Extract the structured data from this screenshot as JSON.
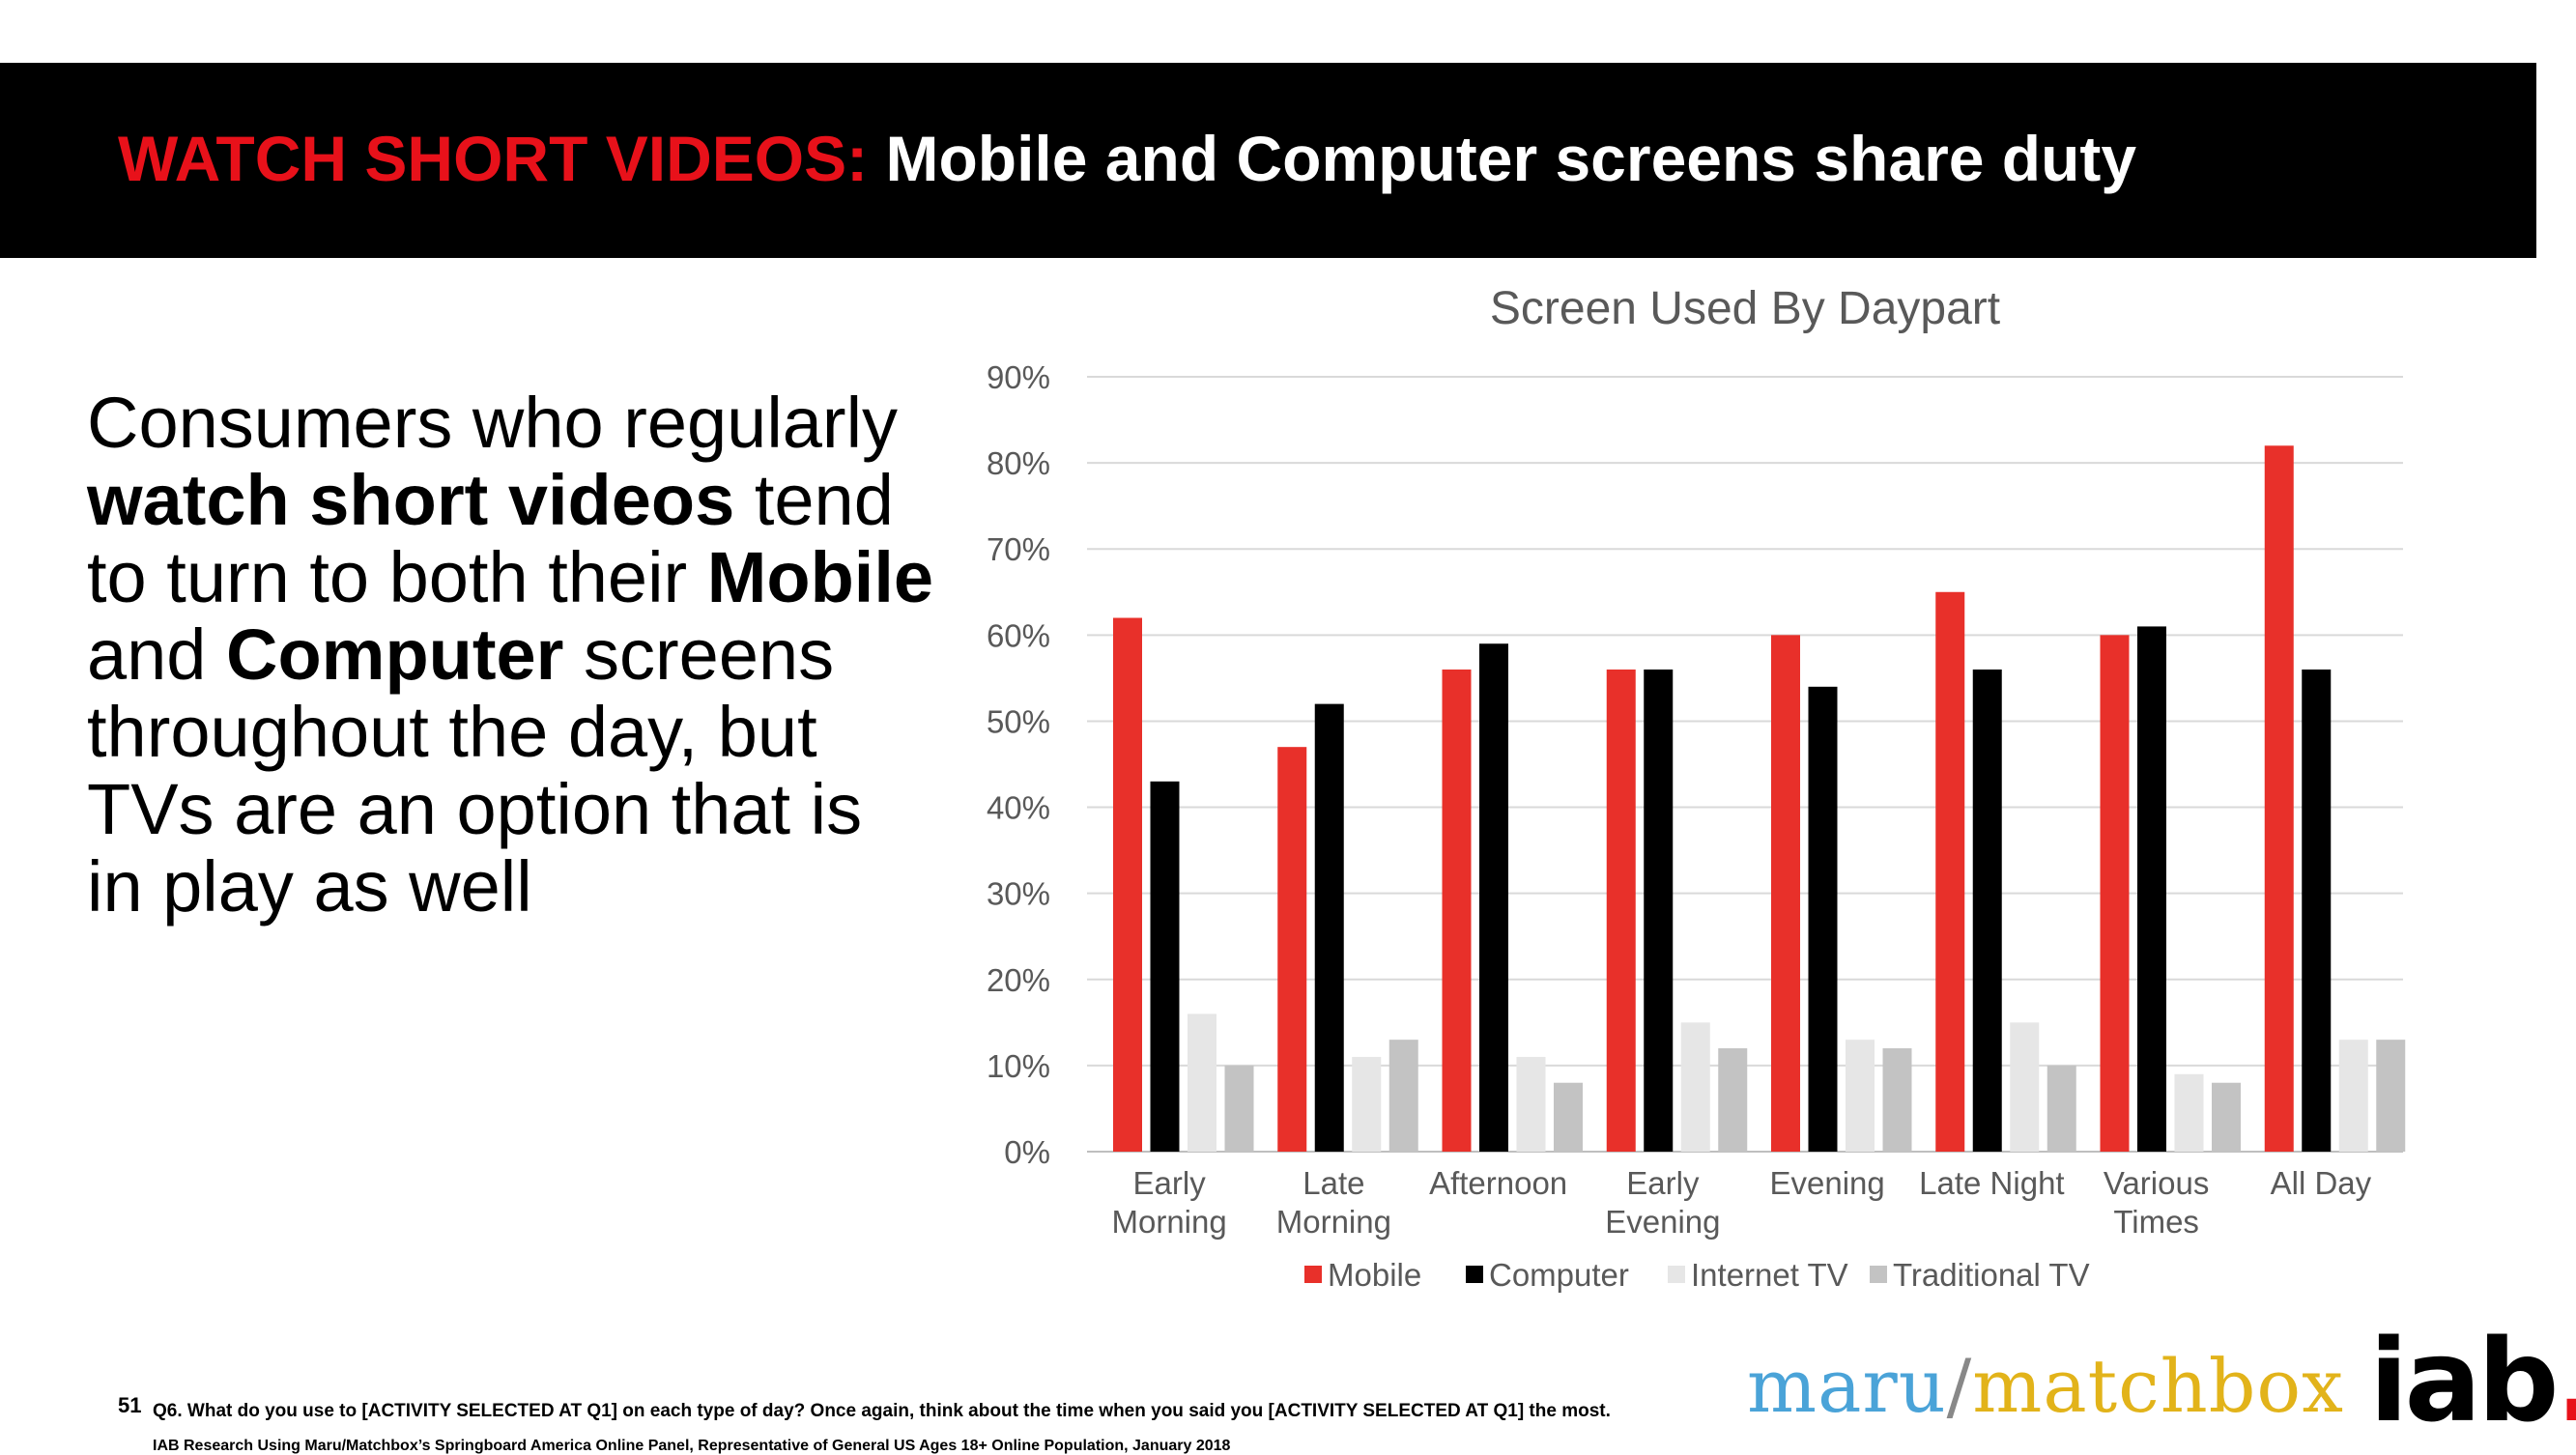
{
  "header": {
    "title_highlight": "WATCH SHORT VIDEOS:",
    "title_rest": "Mobile and Computer screens share duty"
  },
  "body": {
    "t1": "Consumers who regularly ",
    "b1": "watch short videos",
    "t2": " tend to turn to both their ",
    "b2": "Mobile",
    "t3": " and ",
    "b3": "Computer",
    "t4": " screens throughout the day, but TVs are an option that is in play as well"
  },
  "chart_data": {
    "type": "bar",
    "title": "Screen Used By Daypart",
    "categories": [
      [
        "Early",
        "Morning"
      ],
      [
        "Late",
        "Morning"
      ],
      [
        "Afternoon"
      ],
      [
        "Early",
        "Evening"
      ],
      [
        "Evening"
      ],
      [
        "Late Night"
      ],
      [
        "Various",
        "Times"
      ],
      [
        "All Day"
      ]
    ],
    "series": [
      {
        "name": "Mobile",
        "color": "#e8302a",
        "values": [
          62,
          47,
          56,
          56,
          60,
          65,
          60,
          82
        ]
      },
      {
        "name": "Computer",
        "color": "#000000",
        "values": [
          43,
          52,
          59,
          56,
          54,
          56,
          61,
          56
        ]
      },
      {
        "name": "Internet TV",
        "color": "#e6e6e6",
        "values": [
          16,
          11,
          11,
          15,
          13,
          15,
          9,
          13
        ]
      },
      {
        "name": "Traditional TV",
        "color": "#c3c3c3",
        "values": [
          10,
          13,
          8,
          12,
          12,
          10,
          8,
          13
        ]
      }
    ],
    "yticks": [
      "0%",
      "10%",
      "20%",
      "30%",
      "40%",
      "50%",
      "60%",
      "70%",
      "80%",
      "90%"
    ],
    "ylim": [
      0,
      90
    ],
    "xlabel": "",
    "ylabel": "",
    "grid": true,
    "legend": "bottom"
  },
  "footer": {
    "page_number": "51",
    "question": "Q6. What do you use to [ACTIVITY SELECTED AT Q1] on each type of day?  Once again, think about the time when you said you [ACTIVITY SELECTED AT Q1] the most.",
    "source": "IAB Research Using Maru/Matchbox’s Springboard America Online Panel, Representative of General US Ages 18+ Online Population, January 2018"
  },
  "logos": {
    "maru": "maru",
    "slash": "/",
    "matchbox": "matchbox",
    "iab": "iab",
    "iab_dot": "."
  }
}
